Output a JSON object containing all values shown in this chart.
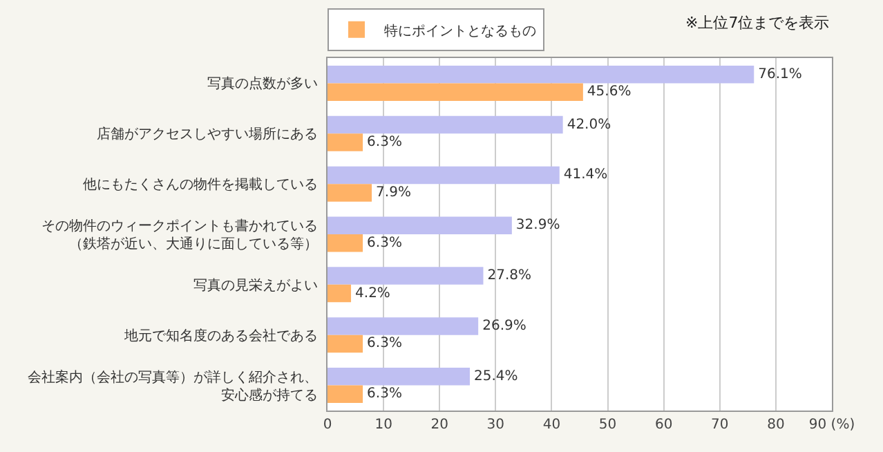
{
  "chart_data": {
    "type": "bar",
    "orientation": "horizontal",
    "categories": [
      "写真の点数が多い",
      "店舗がアクセスしやすい場所にある",
      "他にもたくさんの物件を掲載している",
      "その物件のウィークポイントも書かれている（鉄塔が近い、大通りに面している等）",
      "写真の見栄えがよい",
      "地元で知名度のある会社である",
      "会社案内（会社の写真等）が詳しく紹介され、安心感が持てる"
    ],
    "series": [
      {
        "color": "#bfbff2",
        "values": [
          76.1,
          42.0,
          41.4,
          32.9,
          27.8,
          26.9,
          25.4
        ],
        "value_labels": [
          "76.1%",
          "42.0%",
          "41.4%",
          "32.9%",
          "27.8%",
          "26.9%",
          "25.4%"
        ]
      },
      {
        "name": "特にポイントとなるもの",
        "color": "#ffb266",
        "values": [
          45.6,
          6.3,
          7.9,
          6.3,
          4.2,
          6.3,
          6.3
        ],
        "value_labels": [
          "45.6%",
          "6.3%",
          "7.9%",
          "6.3%",
          "4.2%",
          "6.3%",
          "6.3%"
        ]
      }
    ],
    "xlim": [
      0,
      90
    ],
    "xticks": [
      0,
      10,
      20,
      30,
      40,
      50,
      60,
      70,
      80,
      {
        "value": 90,
        "label": "90 (%)"
      }
    ],
    "grid": "x",
    "legend": "top",
    "annotations": [
      "※上位7位までを表示"
    ]
  }
}
